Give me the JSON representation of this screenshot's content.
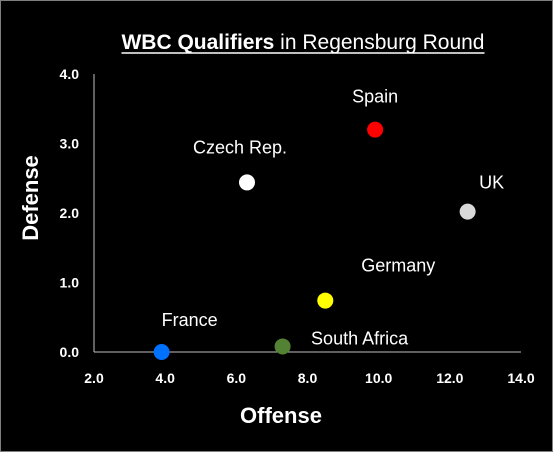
{
  "chart_data": {
    "type": "scatter",
    "title_bold": "WBC Qualifiers",
    "title_rest": " in Regensburg Round",
    "xlabel": "Offense",
    "ylabel": "Defense",
    "xlim": [
      2.0,
      14.0
    ],
    "ylim": [
      0.0,
      4.0
    ],
    "x_ticks": [
      "2.0",
      "4.0",
      "6.0",
      "8.0",
      "10.0",
      "12.0",
      "14.0"
    ],
    "y_ticks": [
      "0.0",
      "1.0",
      "2.0",
      "3.0",
      "4.0"
    ],
    "grid": false,
    "legend": "none",
    "points": [
      {
        "label": "Spain",
        "x": 9.9,
        "y": 3.2,
        "color": "#ff0000"
      },
      {
        "label": "Czech Rep.",
        "x": 6.3,
        "y": 2.44,
        "color": "#ffffff"
      },
      {
        "label": "UK",
        "x": 12.5,
        "y": 2.02,
        "color": "#d9d9d9"
      },
      {
        "label": "Germany",
        "x": 8.5,
        "y": 0.74,
        "color": "#ffff00"
      },
      {
        "label": "France",
        "x": 3.9,
        "y": 0.0,
        "color": "#0070ff"
      },
      {
        "label": "South Africa",
        "x": 7.3,
        "y": 0.08,
        "color": "#548235"
      }
    ]
  }
}
